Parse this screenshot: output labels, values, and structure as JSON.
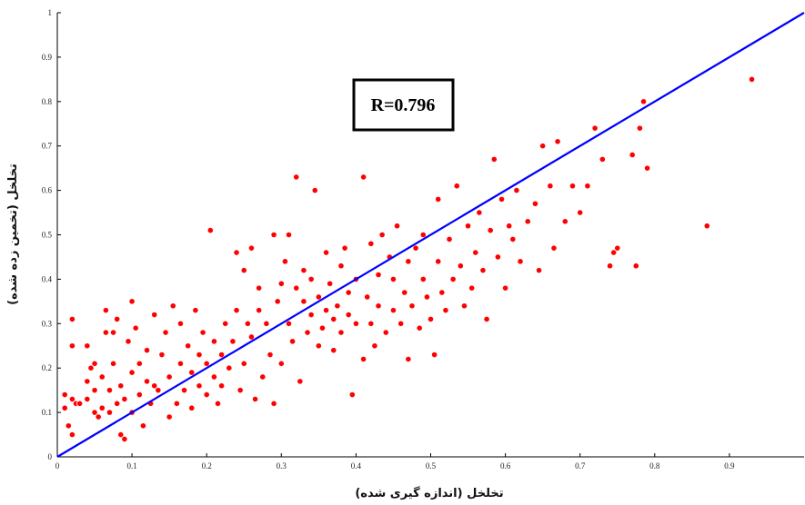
{
  "chart_data": {
    "type": "scatter",
    "xlabel": "تخلخل (اندازه گیری شده)",
    "ylabel": "تخلخل (تخمین زده شده)",
    "annotation": "R=0.796",
    "xlim": [
      0,
      1
    ],
    "ylim": [
      0,
      1
    ],
    "x_ticks": [
      "0",
      "0.1",
      "0.2",
      "0.3",
      "0.4",
      "0.5",
      "0.6",
      "0.7",
      "0.8",
      "0.9"
    ],
    "y_ticks": [
      "0",
      "0.1",
      "0.2",
      "0.3",
      "0.4",
      "0.5",
      "0.6",
      "0.7",
      "0.8",
      "0.9",
      "1"
    ],
    "grid": false,
    "colors": {
      "points": "#ff0000",
      "fit_line": "#0000ff",
      "axis": "#000000"
    },
    "fit_line": {
      "x": [
        0,
        1
      ],
      "y": [
        0,
        1
      ]
    },
    "points": [
      [
        0.01,
        0.11
      ],
      [
        0.01,
        0.14
      ],
      [
        0.015,
        0.07
      ],
      [
        0.02,
        0.13
      ],
      [
        0.02,
        0.05
      ],
      [
        0.02,
        0.25
      ],
      [
        0.02,
        0.31
      ],
      [
        0.025,
        0.12
      ],
      [
        0.03,
        0.12
      ],
      [
        0.04,
        0.13
      ],
      [
        0.04,
        0.17
      ],
      [
        0.04,
        0.25
      ],
      [
        0.045,
        0.2
      ],
      [
        0.05,
        0.1
      ],
      [
        0.05,
        0.15
      ],
      [
        0.05,
        0.21
      ],
      [
        0.055,
        0.09
      ],
      [
        0.06,
        0.11
      ],
      [
        0.06,
        0.18
      ],
      [
        0.065,
        0.28
      ],
      [
        0.065,
        0.33
      ],
      [
        0.07,
        0.1
      ],
      [
        0.07,
        0.15
      ],
      [
        0.075,
        0.21
      ],
      [
        0.075,
        0.28
      ],
      [
        0.08,
        0.12
      ],
      [
        0.08,
        0.31
      ],
      [
        0.085,
        0.16
      ],
      [
        0.085,
        0.05
      ],
      [
        0.09,
        0.04
      ],
      [
        0.09,
        0.13
      ],
      [
        0.095,
        0.26
      ],
      [
        0.1,
        0.1
      ],
      [
        0.1,
        0.19
      ],
      [
        0.1,
        0.35
      ],
      [
        0.105,
        0.29
      ],
      [
        0.11,
        0.14
      ],
      [
        0.11,
        0.21
      ],
      [
        0.115,
        0.07
      ],
      [
        0.12,
        0.17
      ],
      [
        0.12,
        0.24
      ],
      [
        0.125,
        0.12
      ],
      [
        0.13,
        0.16
      ],
      [
        0.13,
        0.32
      ],
      [
        0.135,
        0.15
      ],
      [
        0.14,
        0.23
      ],
      [
        0.145,
        0.28
      ],
      [
        0.15,
        0.09
      ],
      [
        0.15,
        0.18
      ],
      [
        0.155,
        0.34
      ],
      [
        0.16,
        0.12
      ],
      [
        0.165,
        0.21
      ],
      [
        0.165,
        0.3
      ],
      [
        0.17,
        0.15
      ],
      [
        0.175,
        0.25
      ],
      [
        0.18,
        0.11
      ],
      [
        0.18,
        0.19
      ],
      [
        0.185,
        0.33
      ],
      [
        0.19,
        0.16
      ],
      [
        0.19,
        0.23
      ],
      [
        0.195,
        0.28
      ],
      [
        0.2,
        0.14
      ],
      [
        0.2,
        0.21
      ],
      [
        0.205,
        0.51
      ],
      [
        0.21,
        0.26
      ],
      [
        0.21,
        0.18
      ],
      [
        0.215,
        0.12
      ],
      [
        0.22,
        0.23
      ],
      [
        0.22,
        0.16
      ],
      [
        0.225,
        0.3
      ],
      [
        0.23,
        0.2
      ],
      [
        0.235,
        0.26
      ],
      [
        0.24,
        0.46
      ],
      [
        0.24,
        0.33
      ],
      [
        0.245,
        0.15
      ],
      [
        0.25,
        0.42
      ],
      [
        0.25,
        0.21
      ],
      [
        0.255,
        0.3
      ],
      [
        0.26,
        0.47
      ],
      [
        0.26,
        0.27
      ],
      [
        0.265,
        0.13
      ],
      [
        0.27,
        0.33
      ],
      [
        0.27,
        0.38
      ],
      [
        0.275,
        0.18
      ],
      [
        0.28,
        0.3
      ],
      [
        0.285,
        0.23
      ],
      [
        0.29,
        0.5
      ],
      [
        0.29,
        0.12
      ],
      [
        0.295,
        0.35
      ],
      [
        0.3,
        0.39
      ],
      [
        0.3,
        0.21
      ],
      [
        0.305,
        0.44
      ],
      [
        0.31,
        0.3
      ],
      [
        0.31,
        0.5
      ],
      [
        0.315,
        0.26
      ],
      [
        0.32,
        0.38
      ],
      [
        0.32,
        0.63
      ],
      [
        0.325,
        0.17
      ],
      [
        0.33,
        0.35
      ],
      [
        0.33,
        0.42
      ],
      [
        0.335,
        0.28
      ],
      [
        0.34,
        0.32
      ],
      [
        0.34,
        0.4
      ],
      [
        0.345,
        0.6
      ],
      [
        0.35,
        0.25
      ],
      [
        0.35,
        0.36
      ],
      [
        0.355,
        0.29
      ],
      [
        0.36,
        0.33
      ],
      [
        0.36,
        0.46
      ],
      [
        0.365,
        0.39
      ],
      [
        0.37,
        0.24
      ],
      [
        0.37,
        0.31
      ],
      [
        0.375,
        0.34
      ],
      [
        0.38,
        0.43
      ],
      [
        0.38,
        0.28
      ],
      [
        0.385,
        0.47
      ],
      [
        0.39,
        0.32
      ],
      [
        0.39,
        0.37
      ],
      [
        0.395,
        0.14
      ],
      [
        0.4,
        0.3
      ],
      [
        0.4,
        0.4
      ],
      [
        0.41,
        0.22
      ],
      [
        0.41,
        0.63
      ],
      [
        0.415,
        0.36
      ],
      [
        0.42,
        0.3
      ],
      [
        0.42,
        0.48
      ],
      [
        0.425,
        0.25
      ],
      [
        0.43,
        0.41
      ],
      [
        0.43,
        0.34
      ],
      [
        0.435,
        0.5
      ],
      [
        0.44,
        0.28
      ],
      [
        0.445,
        0.45
      ],
      [
        0.45,
        0.33
      ],
      [
        0.45,
        0.4
      ],
      [
        0.455,
        0.52
      ],
      [
        0.46,
        0.3
      ],
      [
        0.465,
        0.37
      ],
      [
        0.47,
        0.44
      ],
      [
        0.47,
        0.22
      ],
      [
        0.475,
        0.34
      ],
      [
        0.48,
        0.47
      ],
      [
        0.485,
        0.29
      ],
      [
        0.49,
        0.4
      ],
      [
        0.49,
        0.5
      ],
      [
        0.495,
        0.36
      ],
      [
        0.5,
        0.31
      ],
      [
        0.505,
        0.23
      ],
      [
        0.51,
        0.44
      ],
      [
        0.51,
        0.58
      ],
      [
        0.515,
        0.37
      ],
      [
        0.52,
        0.33
      ],
      [
        0.525,
        0.49
      ],
      [
        0.53,
        0.4
      ],
      [
        0.535,
        0.61
      ],
      [
        0.54,
        0.43
      ],
      [
        0.545,
        0.34
      ],
      [
        0.55,
        0.52
      ],
      [
        0.555,
        0.38
      ],
      [
        0.56,
        0.46
      ],
      [
        0.565,
        0.55
      ],
      [
        0.57,
        0.42
      ],
      [
        0.575,
        0.31
      ],
      [
        0.58,
        0.51
      ],
      [
        0.585,
        0.67
      ],
      [
        0.59,
        0.45
      ],
      [
        0.595,
        0.58
      ],
      [
        0.6,
        0.38
      ],
      [
        0.605,
        0.52
      ],
      [
        0.61,
        0.49
      ],
      [
        0.615,
        0.6
      ],
      [
        0.62,
        0.44
      ],
      [
        0.63,
        0.53
      ],
      [
        0.64,
        0.57
      ],
      [
        0.645,
        0.42
      ],
      [
        0.65,
        0.7
      ],
      [
        0.66,
        0.61
      ],
      [
        0.665,
        0.47
      ],
      [
        0.67,
        0.71
      ],
      [
        0.68,
        0.53
      ],
      [
        0.69,
        0.61
      ],
      [
        0.7,
        0.55
      ],
      [
        0.71,
        0.61
      ],
      [
        0.72,
        0.74
      ],
      [
        0.73,
        0.67
      ],
      [
        0.74,
        0.43
      ],
      [
        0.745,
        0.46
      ],
      [
        0.75,
        0.47
      ],
      [
        0.77,
        0.68
      ],
      [
        0.775,
        0.43
      ],
      [
        0.78,
        0.74
      ],
      [
        0.785,
        0.8
      ],
      [
        0.79,
        0.65
      ],
      [
        0.87,
        0.52
      ],
      [
        0.93,
        0.85
      ]
    ]
  }
}
